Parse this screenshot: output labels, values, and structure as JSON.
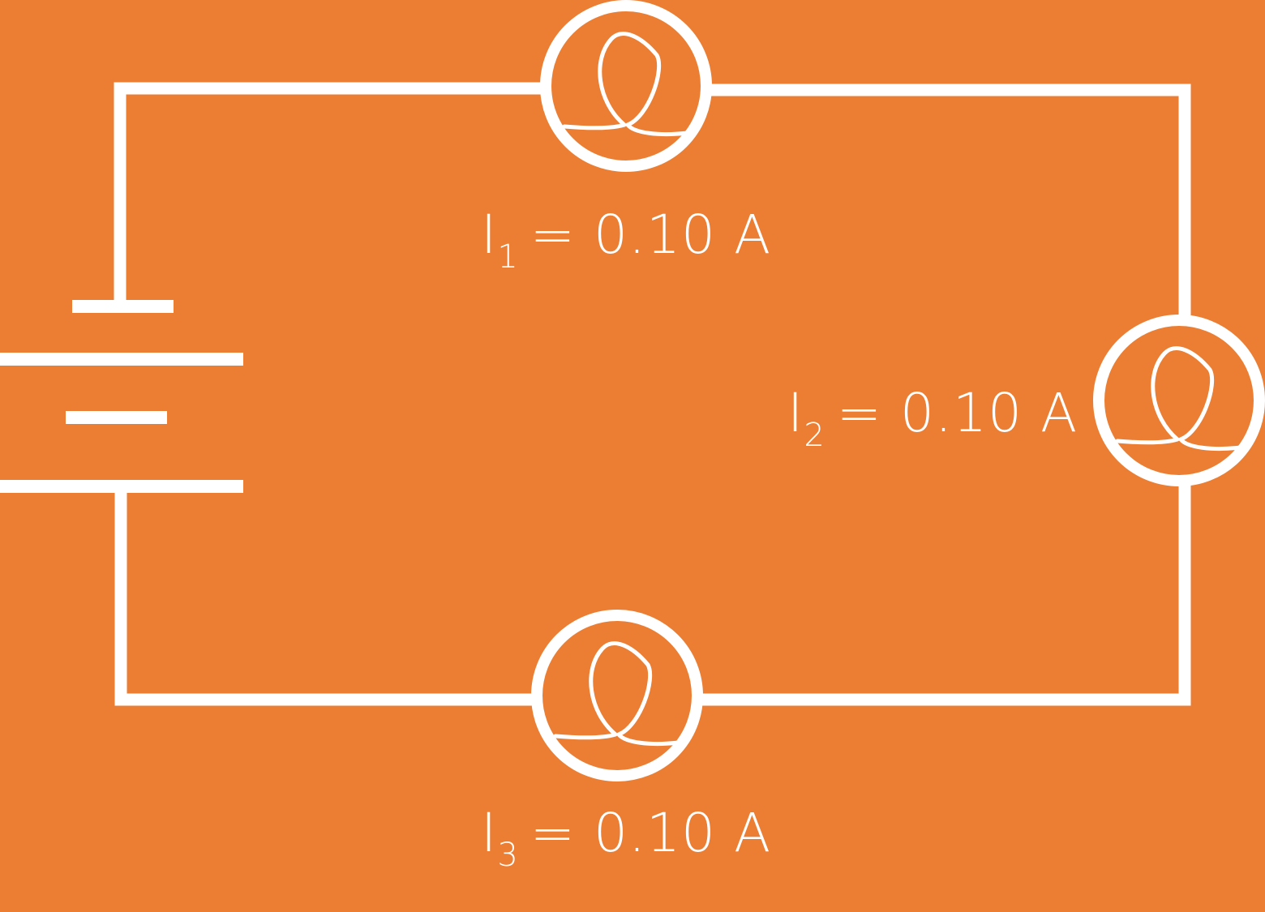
{
  "colors": {
    "background": "#EC7E33",
    "ink": "#FFFFFF"
  },
  "components": {
    "battery": {
      "type": "battery",
      "cells": 2
    },
    "bulbs": [
      {
        "id": "bulb-1",
        "type": "lamp"
      },
      {
        "id": "bulb-2",
        "type": "lamp"
      },
      {
        "id": "bulb-3",
        "type": "lamp"
      }
    ]
  },
  "labels": {
    "i1": {
      "symbol": "I",
      "subscript": "1",
      "value": "= 0.10 A"
    },
    "i2": {
      "symbol": "I",
      "subscript": "2",
      "value": "= 0.10 A"
    },
    "i3": {
      "symbol": "I",
      "subscript": "3",
      "value": "= 0.10 A"
    }
  }
}
